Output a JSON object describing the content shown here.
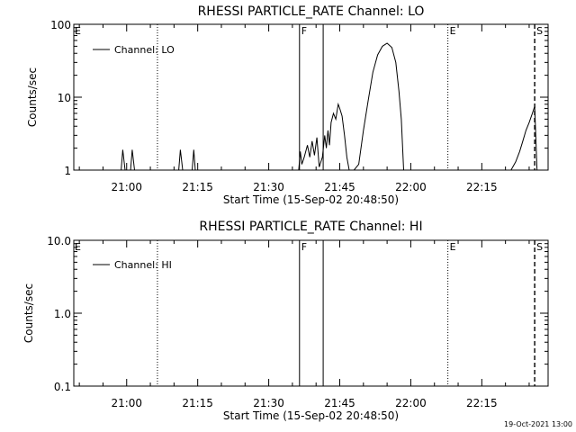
{
  "footer_timestamp": "19-Oct-2021 13:00",
  "chart_data": [
    {
      "type": "line",
      "title": "RHESSI PARTICLE_RATE Channel: LO",
      "xlabel": "Start Time (15-Sep-02 20:48:50)",
      "ylabel": "Counts/sec",
      "yscale": "log",
      "ylim": [
        1,
        100
      ],
      "xlim": [
        "20:48:50",
        "22:29:00"
      ],
      "x_ticks": [
        "21:00",
        "21:15",
        "21:30",
        "21:45",
        "22:00",
        "22:15"
      ],
      "y_ticks": [
        {
          "value": 1,
          "label": "1"
        },
        {
          "value": 10,
          "label": "10"
        },
        {
          "value": 100,
          "label": "100"
        }
      ],
      "legend": {
        "label": "Channel: LO",
        "position": "top-left"
      },
      "markers": [
        {
          "time": "21:06:30",
          "style": "dotted",
          "label": ""
        },
        {
          "time": "21:36:30",
          "style": "solid",
          "label": "F"
        },
        {
          "time": "21:41:30",
          "style": "solid",
          "label": ""
        },
        {
          "time": "22:07:50",
          "style": "dotted",
          "label": "E"
        },
        {
          "time": "22:26:10",
          "style": "dashed",
          "label": "S"
        }
      ],
      "edge_labels": [
        "E"
      ],
      "series": [
        {
          "x": [
            "20:48:50",
            "20:55:40",
            "20:58:50",
            "20:59:10",
            "20:59:40",
            "21:00:50",
            "21:01:10",
            "21:01:40",
            "21:11:00",
            "21:11:20",
            "21:11:50",
            "21:13:50",
            "21:14:10",
            "21:14:30",
            "21:36:20",
            "21:36:40",
            "21:37:00",
            "21:37:30",
            "21:38:10",
            "21:38:40",
            "21:39:10",
            "21:39:40",
            "21:40:10",
            "21:40:40",
            "21:41:20",
            "21:41:50",
            "21:42:10",
            "21:42:30",
            "21:42:50",
            "21:43:10",
            "21:43:40",
            "21:44:10",
            "21:44:40",
            "21:45:00",
            "21:45:30",
            "21:46:00",
            "21:46:30",
            "21:47:00",
            "21:48:00",
            "21:49:00",
            "21:50:00",
            "21:51:00",
            "21:52:00",
            "21:53:00",
            "21:54:00",
            "21:55:00",
            "21:56:00",
            "21:56:50",
            "21:57:30",
            "21:58:00",
            "21:58:30",
            "22:00:00",
            "22:07:00",
            "22:20:10",
            "22:21:10",
            "22:22:10",
            "22:23:00",
            "22:23:40",
            "22:24:20",
            "22:25:00",
            "22:25:40",
            "22:26:10",
            "22:26:40"
          ],
          "y": [
            1,
            1,
            1,
            1.9,
            1,
            1,
            1.9,
            1,
            1,
            1.9,
            1,
            1,
            1.9,
            1,
            1,
            1.8,
            1.2,
            1.5,
            2.2,
            1.5,
            2.5,
            1.6,
            2.8,
            1.1,
            1.5,
            3,
            2,
            3.5,
            2.2,
            4.5,
            6,
            5,
            8,
            7,
            5.5,
            3,
            1.5,
            1,
            1,
            1.2,
            3.5,
            9,
            22,
            38,
            50,
            55,
            48,
            30,
            12,
            5,
            1,
            1,
            1,
            1,
            1,
            1.3,
            1.8,
            2.5,
            3.5,
            4.5,
            6,
            7.5,
            1
          ]
        }
      ]
    },
    {
      "type": "line",
      "title": "RHESSI PARTICLE_RATE Channel: HI",
      "xlabel": "Start Time (15-Sep-02 20:48:50)",
      "ylabel": "Counts/sec",
      "yscale": "log",
      "ylim": [
        0.1,
        10
      ],
      "xlim": [
        "20:48:50",
        "22:29:00"
      ],
      "x_ticks": [
        "21:00",
        "21:15",
        "21:30",
        "21:45",
        "22:00",
        "22:15"
      ],
      "y_ticks": [
        {
          "value": 0.1,
          "label": "0.1"
        },
        {
          "value": 1,
          "label": "1.0"
        },
        {
          "value": 10,
          "label": "10.0"
        }
      ],
      "legend": {
        "label": "Channel: HI",
        "position": "top-left"
      },
      "markers": [
        {
          "time": "21:06:30",
          "style": "dotted",
          "label": ""
        },
        {
          "time": "21:36:30",
          "style": "solid",
          "label": "F"
        },
        {
          "time": "21:41:30",
          "style": "solid",
          "label": ""
        },
        {
          "time": "22:07:50",
          "style": "dotted",
          "label": "E"
        },
        {
          "time": "22:26:10",
          "style": "dashed",
          "label": "S"
        }
      ],
      "edge_labels": [
        "E"
      ],
      "series": [
        {
          "x": [],
          "y": []
        }
      ]
    }
  ]
}
